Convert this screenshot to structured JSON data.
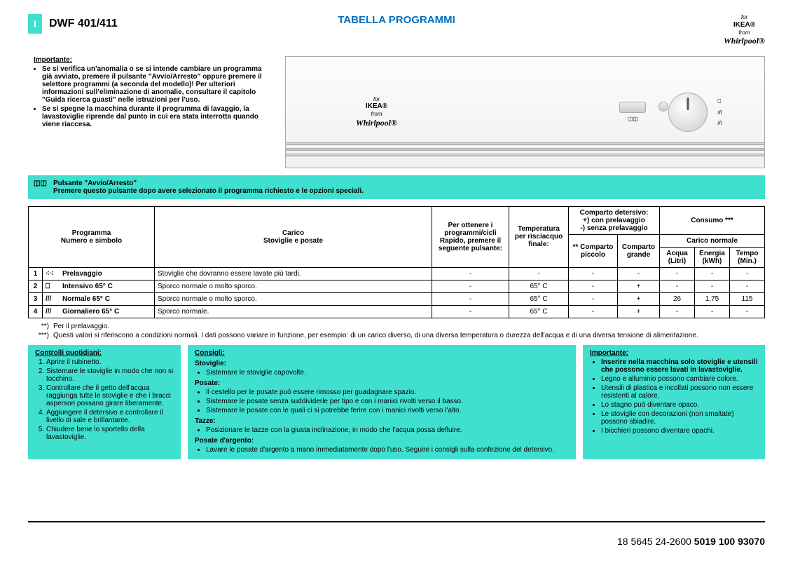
{
  "header": {
    "country_code": "I",
    "model": "DWF 401/411",
    "title": "TABELLA PROGRAMMI",
    "brand_for": "for",
    "brand_ikea": "IKEA®",
    "brand_from": "from",
    "brand_whirlpool": "Whirlpool®"
  },
  "importante": {
    "title": "Importante:",
    "b1": "Se si verifica un'anomalia o se si intende cambiare un programma già avviato, premere il pulsante \"Avvio/Arresto\" oppure premere il selettore programmi (a seconda del modello)! Per ulteriori informazioni sull'eliminazione di anomalie, consultare il capitolo \"Guida ricerca guasti\" nelle istruzioni per l'uso.",
    "b2": "Se si spegne la macchina durante il programma di lavaggio, la lavastoviglie riprende dal punto in cui era stata interrotta quando viene riaccesa."
  },
  "avvio": {
    "line1": "Pulsante \"Avvio/Arresto\"",
    "line2": "Premere questo pulsante dopo avere selezionato il programma richiesto e le opzioni speciali."
  },
  "table": {
    "headers": {
      "programma": "Programma\nNumero e simbolo",
      "carico": "Carico\nStoviglie e posate",
      "rapido": "Per ottenere i programmi/cicli Rapido, premere il seguente pulsante:",
      "temp": "Temperatura per risciacquo finale:",
      "detersivo": "Comparto detersivo:\n+) con prelavaggio\n-) senza prelavaggio",
      "comp_piccolo": "** Comparto piccolo",
      "comp_grande": "Comparto grande",
      "consumo": "Consumo ***",
      "carico_normale": "Carico normale",
      "acqua": "Acqua (Litri)",
      "energia": "Energia (kWh)",
      "tempo": "Tempo (Min.)"
    },
    "rows": [
      {
        "n": "1",
        "icon": "⁖⁖",
        "name": "Prelavaggio",
        "carico": "Stoviglie che dovranno essere lavate più tardi.",
        "rapido": "-",
        "temp": "-",
        "cp": "-",
        "cg": "-",
        "acqua": "-",
        "energia": "-",
        "tempo": "-"
      },
      {
        "n": "2",
        "icon": "⎕",
        "name": "Intensivo 65° C",
        "carico": "Sporco normale o molto sporco.",
        "rapido": "-",
        "temp": "65° C",
        "cp": "-",
        "cg": "+",
        "acqua": "-",
        "energia": "-",
        "tempo": "-"
      },
      {
        "n": "3",
        "icon": "///",
        "name": "Normale 65° C",
        "carico": "Sporco normale o molto sporco.",
        "rapido": "-",
        "temp": "65° C",
        "cp": "-",
        "cg": "+",
        "acqua": "26",
        "energia": "1,75",
        "tempo": "115"
      },
      {
        "n": "4",
        "icon": "///",
        "name": "Giornaliero 65° C",
        "carico": "Sporco normale.",
        "rapido": "-",
        "temp": "65° C",
        "cp": "-",
        "cg": "+",
        "acqua": "-",
        "energia": "-",
        "tempo": "-"
      }
    ]
  },
  "footnotes": {
    "f1_mark": "**)",
    "f1": "Per il prelavaggio.",
    "f2_mark": "***)",
    "f2": "Questi valori si riferiscono a condizioni normali. I dati possono variare in funzione, per esempio: di un carico diverso, di una diversa temperatura o durezza dell'acqua e di una diversa tensione di alimentazione."
  },
  "col1": {
    "title": "Controlli quotidiani:",
    "items": [
      "Aprire il rubinetto.",
      "Sistemare le stoviglie in modo che non si tocchino.",
      "Controllare che il getto dell'acqua raggiunga tutte le stoviglie e che i bracci aspersori possano girare liberamente.",
      "Aggiungere il detersivo e controllare il livello di sale e brillantante.",
      "Chiudere bene lo sportello della lavastoviglie."
    ]
  },
  "col2": {
    "title": "Consigli:",
    "sec1_h": "Stoviglie:",
    "sec1_i1": "Sistemare le stoviglie capovolte.",
    "sec2_h": "Posate:",
    "sec2_i1": "Il cestello per le posate può essere rimosso per guadagnare spazio.",
    "sec2_i2": "Sistemare le posate senza suddividerle per tipo e con i manici rivolti verso il basso.",
    "sec2_i3": "Sistemare le posate con le quali ci si potrebbe ferire con i manici rivolti verso l'alto.",
    "sec3_h": "Tazze:",
    "sec3_i1": "Posizionare le tazze con la giusta inclinazione, in modo che l'acqua possa defluire.",
    "sec4_h": "Posate d'argento:",
    "sec4_i1": "Lavare le posate d'argento a mano immediatamente dopo l'uso. Seguire i consigli sulla confezione del detersivo."
  },
  "col3": {
    "title": "Importante:",
    "lead": "Inserire nella macchina solo stoviglie e utensili che possono essere lavati in lavastoviglie.",
    "items": [
      "Legno e alluminio possono cambiare colore.",
      "Utensili di plastica e incollati possono non essere resistenti al calore.",
      "Lo stagno può diventare opaco.",
      "Le stoviglie con decorazioni (non smaltate) possono sbiadire.",
      "I bicchieri possono diventare opachi."
    ]
  },
  "footer": {
    "code1": "18 5645 24-2600",
    "code2": "5019 100 93070"
  },
  "colors": {
    "teal": "#40e0d0",
    "blue": "#0070c0"
  }
}
